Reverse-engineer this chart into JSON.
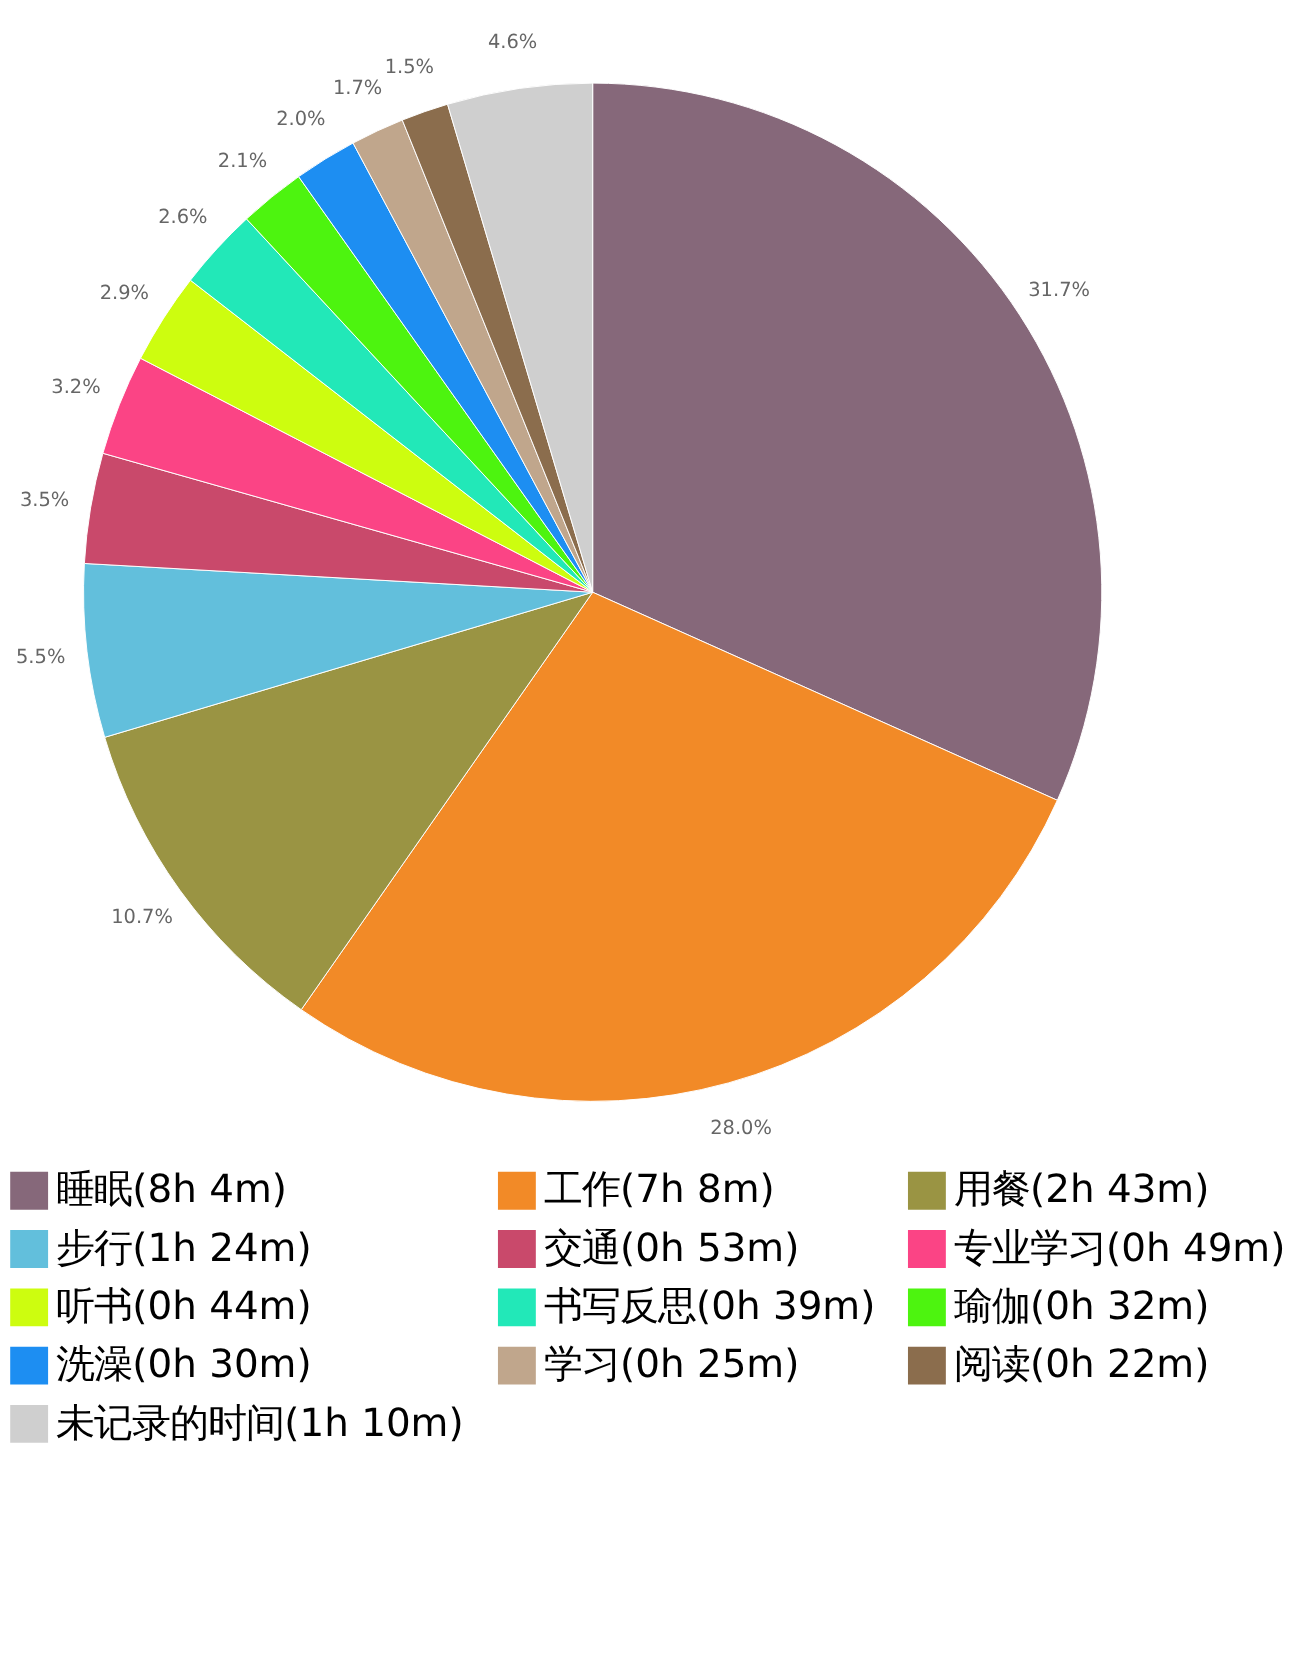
{
  "chart_data": {
    "type": "pie",
    "categories": [
      "睡眠(8h 4m)",
      "工作(7h 8m)",
      "用餐(2h 43m)",
      "步行(1h 24m)",
      "交通(0h 53m)",
      "专业学习(0h 49m)",
      "听书(0h 44m)",
      "书写反思(0h 39m)",
      "瑜伽(0h 32m)",
      "洗澡(0h 30m)",
      "学习(0h 25m)",
      "阅读(0h 22m)",
      "未记录的时间(1h 10m)"
    ],
    "values": [
      31.7,
      28.0,
      10.7,
      5.5,
      3.5,
      3.2,
      2.9,
      2.6,
      2.1,
      2.0,
      1.7,
      1.5,
      4.6
    ],
    "colors": [
      "#86687a",
      "#f28a27",
      "#9a9443",
      "#62bfdc",
      "#c9496b",
      "#fb4485",
      "#cdfd0f",
      "#22e8b8",
      "#4df40f",
      "#1d8ef2",
      "#c0a68c",
      "#8b6d4d",
      "#cfcfcf"
    ],
    "value_labels": [
      "31.7%",
      "28.0%",
      "10.7%",
      "5.5%",
      "3.5%",
      "3.2%",
      "2.9%",
      "2.6%",
      "2.1%",
      "2.0%",
      "1.7%",
      "1.5%",
      "4.6%"
    ],
    "legend": "bottom"
  }
}
